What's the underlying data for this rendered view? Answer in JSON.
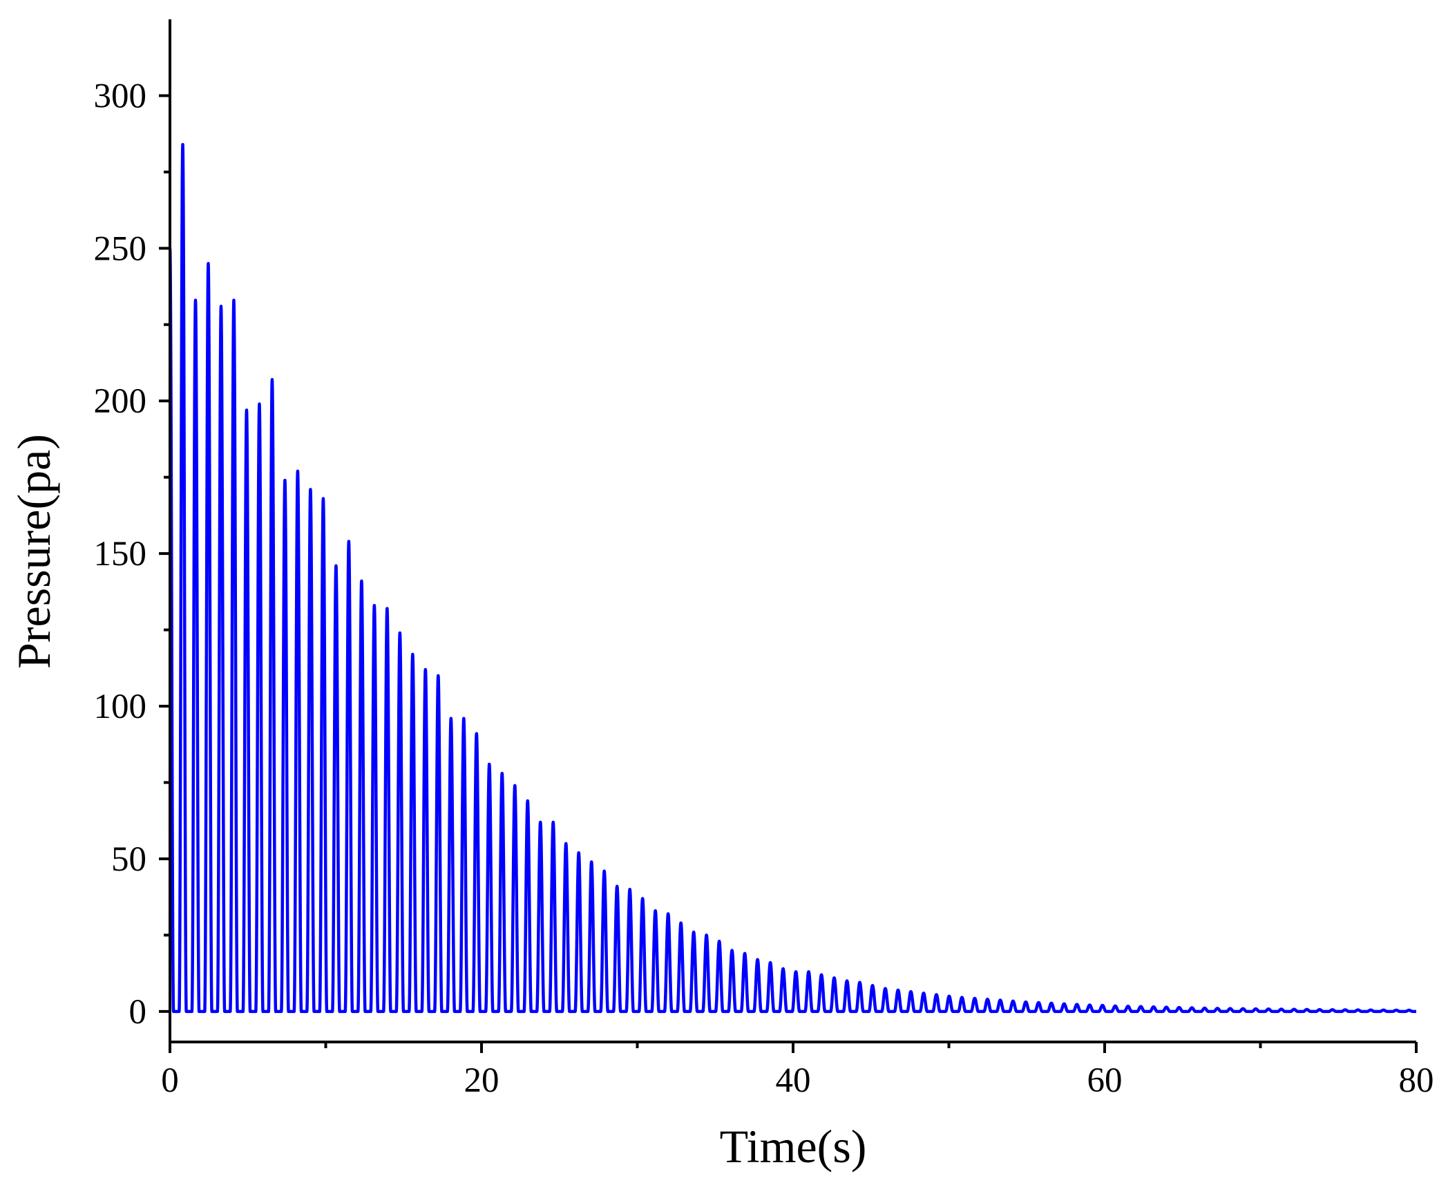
{
  "chart_data": {
    "type": "line",
    "xlabel": "Time(s)",
    "ylabel": "Pressure(pa)",
    "xlim": [
      0,
      80
    ],
    "ylim": [
      -10,
      325
    ],
    "x_ticks": [
      0,
      20,
      40,
      60,
      80
    ],
    "y_ticks": [
      0,
      50,
      100,
      150,
      200,
      250,
      300
    ],
    "x_tick_labels": [
      "0",
      "20",
      "40",
      "60",
      "80"
    ],
    "y_tick_labels": [
      "0",
      "50",
      "100",
      "150",
      "200",
      "250",
      "300"
    ],
    "grid": false,
    "legend": "none",
    "series_color": "#0000ff",
    "series": [
      {
        "period_s": 0.82,
        "peak_times_s": [
          0.0,
          0.82,
          1.64,
          2.46,
          3.28,
          4.1,
          4.92,
          5.74,
          6.56,
          7.38,
          8.2,
          9.02,
          9.84,
          10.66,
          11.48,
          12.3,
          13.12,
          13.94,
          14.76,
          15.58,
          16.4,
          17.22,
          18.04,
          18.86,
          19.68,
          20.5,
          21.32,
          22.14,
          22.96,
          23.78,
          24.6,
          25.42,
          26.24,
          27.06,
          27.88,
          28.7,
          29.52,
          30.34,
          31.16,
          31.98,
          32.8,
          33.62,
          34.44,
          35.26,
          36.08,
          36.9,
          37.72,
          38.54,
          39.36,
          40.18,
          41.0,
          41.82,
          42.64,
          43.46,
          44.28,
          45.1,
          45.92,
          46.74,
          47.56,
          48.38,
          49.2,
          50.02,
          50.84,
          51.66,
          52.48,
          53.3,
          54.12,
          54.94,
          55.76,
          56.58,
          57.4,
          58.22,
          59.04,
          59.86,
          60.68,
          61.5,
          62.32,
          63.14,
          63.96,
          64.78,
          65.6,
          66.42,
          67.24,
          68.06,
          68.88,
          69.7,
          70.52,
          71.34,
          72.16,
          72.98,
          73.8,
          74.62,
          75.44,
          76.26,
          77.08,
          77.9,
          78.72,
          79.54
        ],
        "peak_values_pa": [
          250,
          284,
          233,
          245,
          231,
          233,
          197,
          199,
          207,
          174,
          177,
          171,
          168,
          146,
          154,
          141,
          133,
          132,
          124,
          117,
          112,
          110,
          96,
          96,
          91,
          81,
          78,
          74,
          69,
          62,
          62,
          55,
          52,
          49,
          46,
          41,
          40,
          37,
          33,
          32,
          29,
          26,
          25,
          23,
          20,
          19,
          17,
          16,
          14,
          13,
          13,
          12,
          11,
          10,
          9.5,
          8.5,
          7.5,
          7,
          6.5,
          6,
          5.5,
          5,
          4.6,
          4.3,
          4,
          3.7,
          3.4,
          3.1,
          2.9,
          2.7,
          2.5,
          2.3,
          2.1,
          2,
          1.8,
          1.7,
          1.6,
          1.5,
          1.4,
          1.3,
          1.2,
          1.1,
          1.0,
          0.95,
          0.9,
          0.85,
          0.8,
          0.75,
          0.7,
          0.65,
          0.6,
          0.57,
          0.54,
          0.5,
          0.47,
          0.45,
          0.42,
          0.4
        ],
        "baseline_pa": 0
      }
    ]
  }
}
